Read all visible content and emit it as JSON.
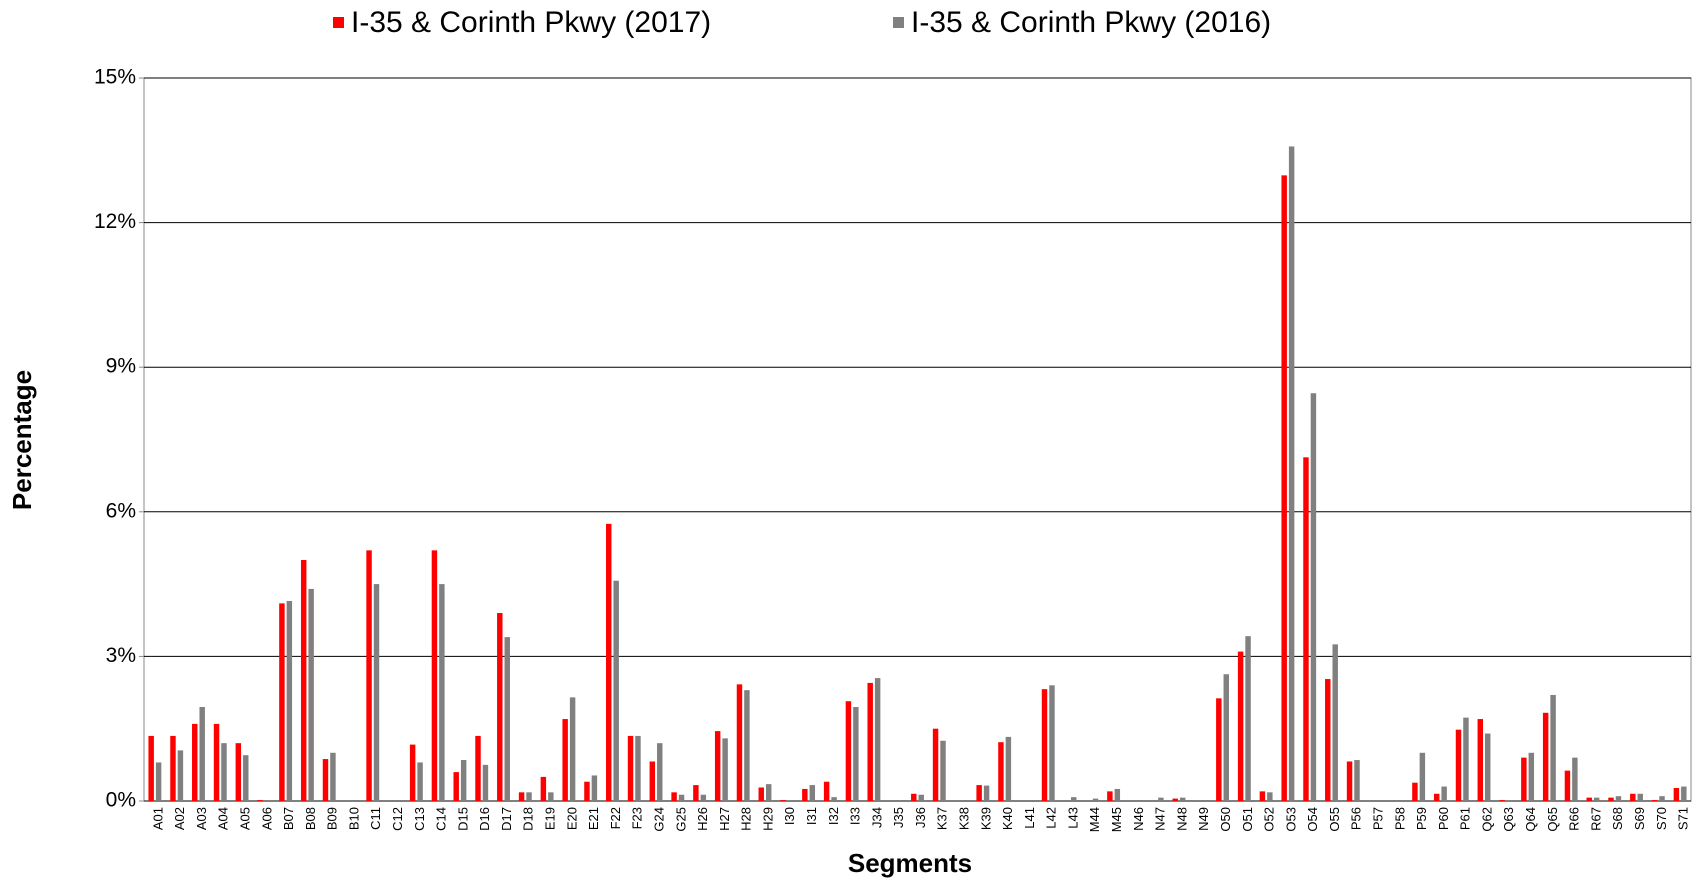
{
  "chart_data": {
    "type": "bar",
    "series": [
      {
        "name": "I-35 & Corinth Pkwy (2017)",
        "color": "#ff0000",
        "values": [
          1.35,
          1.35,
          1.6,
          1.6,
          1.2,
          0.02,
          4.1,
          5.0,
          0.87,
          0,
          5.2,
          0,
          1.17,
          5.2,
          0.6,
          1.35,
          3.9,
          0.18,
          0.5,
          1.7,
          0.4,
          5.75,
          1.35,
          0.82,
          0.18,
          0.33,
          1.45,
          2.42,
          0.28,
          0.02,
          0.25,
          0.4,
          2.07,
          2.45,
          0,
          0.15,
          1.5,
          0,
          0.33,
          1.22,
          0,
          2.32,
          0,
          0,
          0.2,
          0,
          0,
          0.05,
          0,
          2.13,
          3.1,
          0.2,
          12.98,
          7.13,
          2.53,
          0.82,
          0,
          0,
          0.38,
          0.15,
          1.48,
          1.7,
          0.02,
          0.9,
          1.83,
          0.63,
          0.07,
          0.07,
          0.15,
          0.02,
          0.27
        ]
      },
      {
        "name": "I-35 & Corinth Pkwy (2016)",
        "color": "#808080",
        "values": [
          0.8,
          1.05,
          1.95,
          1.2,
          0.95,
          0.02,
          4.15,
          4.4,
          1.0,
          0,
          4.5,
          0,
          0.8,
          4.5,
          0.85,
          0.75,
          3.4,
          0.18,
          0.18,
          2.15,
          0.53,
          4.57,
          1.35,
          1.2,
          0.13,
          0.13,
          1.3,
          2.3,
          0.35,
          0.02,
          0.33,
          0.08,
          1.95,
          2.55,
          0,
          0.13,
          1.25,
          0,
          0.32,
          1.33,
          0,
          2.4,
          0.08,
          0.05,
          0.25,
          0,
          0.07,
          0.07,
          0,
          2.63,
          3.42,
          0.18,
          13.58,
          8.46,
          3.25,
          0.85,
          0,
          0,
          1.0,
          0.3,
          1.73,
          1.4,
          0.02,
          1.0,
          2.2,
          0.9,
          0.07,
          0.1,
          0.15,
          0.1,
          0.3
        ]
      }
    ],
    "categories": [
      "A01",
      "A02",
      "A03",
      "A04",
      "A05",
      "A06",
      "B07",
      "B08",
      "B09",
      "B10",
      "C11",
      "C12",
      "C13",
      "C14",
      "D15",
      "D16",
      "D17",
      "D18",
      "E19",
      "E20",
      "E21",
      "F22",
      "F23",
      "G24",
      "G25",
      "H26",
      "H27",
      "H28",
      "H29",
      "I30",
      "I31",
      "I32",
      "I33",
      "J34",
      "J35",
      "J36",
      "K37",
      "K38",
      "K39",
      "K40",
      "L41",
      "L42",
      "L43",
      "M44",
      "M45",
      "N46",
      "N47",
      "N48",
      "N49",
      "O50",
      "O51",
      "O52",
      "O53",
      "O54",
      "O55",
      "P56",
      "P57",
      "P58",
      "P59",
      "P60",
      "P61",
      "Q62",
      "Q63",
      "Q64",
      "Q65",
      "R66",
      "R67",
      "S68",
      "S69",
      "S70",
      "S71"
    ],
    "x_label": "Segments",
    "y_label": "Percentage",
    "ylim": [
      0,
      15
    ],
    "yticks": [
      {
        "value": 0,
        "label": "0%"
      },
      {
        "value": 3,
        "label": "3%"
      },
      {
        "value": 6,
        "label": "6%"
      },
      {
        "value": 9,
        "label": "9%"
      },
      {
        "value": 12,
        "label": "12%"
      },
      {
        "value": 15,
        "label": "15%"
      }
    ],
    "grid": true,
    "legend": "top"
  }
}
